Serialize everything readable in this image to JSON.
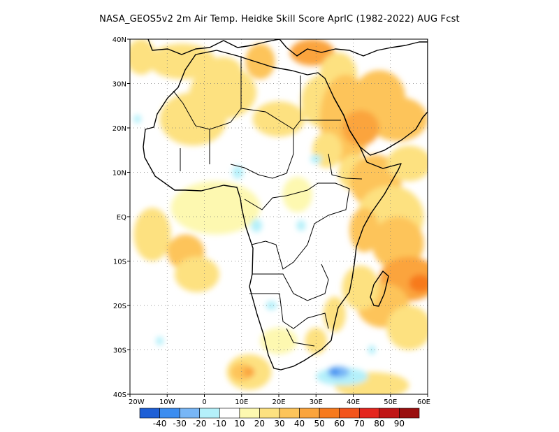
{
  "title": "NASA_GEOS5v2  2m Air Temp. Heidke Skill Score AprIC (1982-2022) AUG Fcst",
  "map": {
    "lon_range": [
      -20,
      60
    ],
    "lat_range": [
      -40,
      40
    ],
    "lat_ticks": [
      {
        "value": 40,
        "label": "40N"
      },
      {
        "value": 30,
        "label": "30N"
      },
      {
        "value": 20,
        "label": "20N"
      },
      {
        "value": 10,
        "label": "10N"
      },
      {
        "value": 0,
        "label": "EQ"
      },
      {
        "value": -10,
        "label": "10S"
      },
      {
        "value": -20,
        "label": "20S"
      },
      {
        "value": -30,
        "label": "30S"
      },
      {
        "value": -40,
        "label": "40S"
      }
    ],
    "lon_ticks": [
      {
        "value": -20,
        "label": "20W"
      },
      {
        "value": -10,
        "label": "10W"
      },
      {
        "value": 0,
        "label": "0"
      },
      {
        "value": 10,
        "label": "10E"
      },
      {
        "value": 20,
        "label": "20E"
      },
      {
        "value": 30,
        "label": "30E"
      },
      {
        "value": 40,
        "label": "40E"
      },
      {
        "value": 50,
        "label": "50E"
      },
      {
        "value": 60,
        "label": "60E"
      }
    ],
    "gridlines": "dotted",
    "skill_blobs": [
      {
        "lon": 3,
        "lat": 2,
        "rx": 12,
        "ry": 6,
        "value": 10
      },
      {
        "lon": -14,
        "lat": -4,
        "rx": 5,
        "ry": 6,
        "value": 20
      },
      {
        "lon": -5,
        "lat": -8,
        "rx": 5,
        "ry": 4,
        "value": 30
      },
      {
        "lon": -2,
        "lat": -13,
        "rx": 6,
        "ry": 4,
        "value": 20
      },
      {
        "lon": -17,
        "lat": 36,
        "rx": 4,
        "ry": 4,
        "value": 20
      },
      {
        "lon": -6,
        "lat": 35,
        "rx": 9,
        "ry": 4,
        "value": 20
      },
      {
        "lon": 5,
        "lat": 33,
        "rx": 5,
        "ry": 3,
        "value": 20
      },
      {
        "lon": 5,
        "lat": 28,
        "rx": 9,
        "ry": 6,
        "value": 20
      },
      {
        "lon": -3,
        "lat": 22,
        "rx": 9,
        "ry": 6,
        "value": 20
      },
      {
        "lon": 15,
        "lat": 35,
        "rx": 4,
        "ry": 4,
        "value": 30
      },
      {
        "lon": 29,
        "lat": 37,
        "rx": 6,
        "ry": 3,
        "value": 40
      },
      {
        "lon": 36,
        "lat": 32,
        "rx": 5,
        "ry": 5,
        "value": 20
      },
      {
        "lon": 32,
        "lat": 26,
        "rx": 6,
        "ry": 6,
        "value": 20
      },
      {
        "lon": 38,
        "lat": 22,
        "rx": 7,
        "ry": 10,
        "value": 30
      },
      {
        "lon": 47,
        "lat": 27,
        "rx": 7,
        "ry": 6,
        "value": 30
      },
      {
        "lon": 52,
        "lat": 22,
        "rx": 8,
        "ry": 5,
        "value": 30
      },
      {
        "lon": 42,
        "lat": 20,
        "rx": 5,
        "ry": 4,
        "value": 40
      },
      {
        "lon": 20,
        "lat": 22,
        "rx": 7,
        "ry": 4,
        "value": 20
      },
      {
        "lon": 33,
        "lat": 15,
        "rx": 4,
        "ry": 4,
        "value": 20
      },
      {
        "lon": 40,
        "lat": 10,
        "rx": 4,
        "ry": 4,
        "value": 20
      },
      {
        "lon": 46,
        "lat": 8,
        "rx": 7,
        "ry": 6,
        "value": 30
      },
      {
        "lon": 55,
        "lat": 12,
        "rx": 6,
        "ry": 4,
        "value": 20
      },
      {
        "lon": 50,
        "lat": 0,
        "rx": 9,
        "ry": 7,
        "value": 20
      },
      {
        "lon": 43,
        "lat": -3,
        "rx": 4,
        "ry": 5,
        "value": 30
      },
      {
        "lon": 52,
        "lat": -6,
        "rx": 7,
        "ry": 6,
        "value": 30
      },
      {
        "lon": 55,
        "lat": -14,
        "rx": 8,
        "ry": 5,
        "value": 40
      },
      {
        "lon": 58,
        "lat": -15,
        "rx": 3,
        "ry": 2,
        "value": 50
      },
      {
        "lon": 48,
        "lat": -20,
        "rx": 7,
        "ry": 5,
        "value": 30
      },
      {
        "lon": 55,
        "lat": -25,
        "rx": 6,
        "ry": 5,
        "value": 20
      },
      {
        "lon": 42,
        "lat": -16,
        "rx": 5,
        "ry": 5,
        "value": 20
      },
      {
        "lon": 12,
        "lat": -35,
        "rx": 6,
        "ry": 4,
        "value": 20
      },
      {
        "lon": 10,
        "lat": -35,
        "rx": 3,
        "ry": 2,
        "value": 30
      },
      {
        "lon": 12,
        "lat": -35,
        "rx": 1.5,
        "ry": 1.2,
        "value": 40
      },
      {
        "lon": 30,
        "lat": -28,
        "rx": 3,
        "ry": 3,
        "value": 20
      },
      {
        "lon": 35,
        "lat": -22,
        "rx": 3,
        "ry": 4,
        "value": 20
      },
      {
        "lon": 20,
        "lat": -28,
        "rx": 5,
        "ry": 3,
        "value": 10
      },
      {
        "lon": 45,
        "lat": -38,
        "rx": 10,
        "ry": 3,
        "value": 20
      },
      {
        "lon": 25,
        "lat": 5,
        "rx": 4,
        "ry": 4,
        "value": 10
      },
      {
        "lon": 9,
        "lat": 10,
        "rx": 1.5,
        "ry": 1.5,
        "value": -10
      },
      {
        "lon": 30,
        "lat": 13,
        "rx": 1.5,
        "ry": 1,
        "value": -10
      },
      {
        "lon": 14,
        "lat": -2,
        "rx": 1.5,
        "ry": 1.5,
        "value": -10
      },
      {
        "lon": 26,
        "lat": -2,
        "rx": 1.2,
        "ry": 1.2,
        "value": -10
      },
      {
        "lon": 18,
        "lat": -20,
        "rx": 1.5,
        "ry": 1,
        "value": -10
      },
      {
        "lon": 37,
        "lat": -36,
        "rx": 7,
        "ry": 2,
        "value": -10
      },
      {
        "lon": 36,
        "lat": -35,
        "rx": 3,
        "ry": 1.3,
        "value": -20
      },
      {
        "lon": 35,
        "lat": -35,
        "rx": 1.2,
        "ry": 0.8,
        "value": -30
      },
      {
        "lon": -18,
        "lat": 22,
        "rx": 1,
        "ry": 1,
        "value": -10
      },
      {
        "lon": -12,
        "lat": -28,
        "rx": 1,
        "ry": 1,
        "value": -10
      },
      {
        "lon": 45,
        "lat": -30,
        "rx": 1,
        "ry": 1,
        "value": -10
      }
    ]
  },
  "colorbar": {
    "colors": [
      "#1e5fd6",
      "#3c8df0",
      "#78b6f6",
      "#b4f0fa",
      "#ffffff",
      "#fdf8b0",
      "#fde180",
      "#fdc45a",
      "#fba43c",
      "#f77a1e",
      "#f2541c",
      "#e4261e",
      "#c01616",
      "#9a0f0f"
    ],
    "labels": [
      "-40",
      "-30",
      "-20",
      "-10",
      "10",
      "20",
      "30",
      "40",
      "50",
      "60",
      "70",
      "80",
      "90"
    ]
  }
}
